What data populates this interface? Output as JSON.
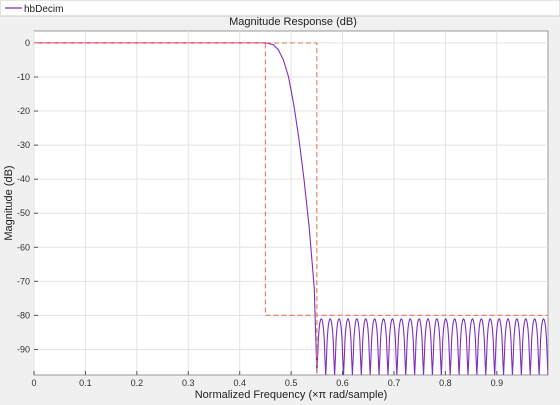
{
  "legend": {
    "entries": [
      {
        "label": "hbDecim",
        "color": "#7e2fbf"
      }
    ]
  },
  "chart_data": {
    "type": "line",
    "title": "Magnitude Response (dB)",
    "xlabel": "Normalized Frequency (×π rad/sample)",
    "ylabel": "Magnitude (dB)",
    "xlim": [
      0,
      0.9995
    ],
    "ylim": [
      -97.5,
      3.5
    ],
    "grid": true,
    "legend_position": "top-left",
    "x_ticks": [
      0,
      0.1,
      0.2,
      0.3,
      0.4,
      0.5,
      0.6,
      0.7,
      0.8,
      0.9
    ],
    "x_tick_labels": [
      "0",
      "0.1",
      "0.2",
      "0.3",
      "0.4",
      "0.5",
      "0.6",
      "0.7",
      "0.8",
      "0.9"
    ],
    "y_ticks": [
      0,
      -10,
      -20,
      -30,
      -40,
      -50,
      -60,
      -70,
      -80,
      -90
    ],
    "y_tick_labels": [
      "0",
      "-10",
      "-20",
      "-30",
      "-40",
      "-50",
      "-60",
      "-70",
      "-80",
      "-90"
    ],
    "colors": {
      "response": "#7e2fbf",
      "mask": "#e8826e",
      "passband_overlay": "#e0206a"
    },
    "series": [
      {
        "name": "hbDecim",
        "passband_edge": 0.45,
        "transition_points": [
          [
            0.45,
            0
          ],
          [
            0.465,
            -0.5
          ],
          [
            0.475,
            -2
          ],
          [
            0.485,
            -5
          ],
          [
            0.495,
            -10
          ],
          [
            0.505,
            -18
          ],
          [
            0.515,
            -28
          ],
          [
            0.525,
            -40
          ],
          [
            0.535,
            -54
          ],
          [
            0.545,
            -72
          ],
          [
            0.55,
            -97
          ]
        ],
        "stopband_start": 0.55,
        "stopband_peak_db": -81,
        "stopband_lobes": 26
      },
      {
        "name": "mask",
        "points": [
          [
            0,
            0
          ],
          [
            0.45,
            0
          ],
          [
            0.45,
            -80
          ],
          [
            0.9995,
            -80
          ]
        ],
        "upper_points": [
          [
            0,
            0
          ],
          [
            0.55,
            0
          ],
          [
            0.55,
            -97.5
          ]
        ]
      }
    ]
  }
}
